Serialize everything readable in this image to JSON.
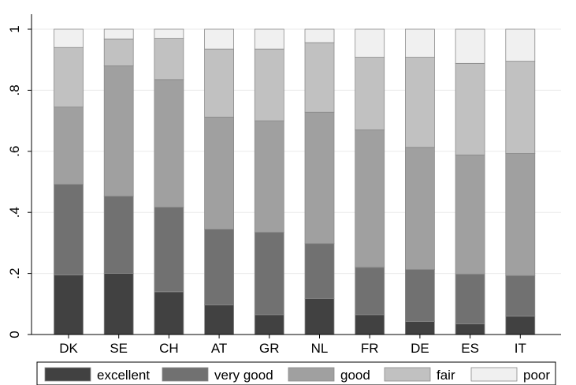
{
  "chart_data": {
    "type": "bar",
    "stacked": true,
    "categories": [
      "DK",
      "SE",
      "CH",
      "AT",
      "GR",
      "NL",
      "FR",
      "DE",
      "ES",
      "IT"
    ],
    "series": [
      {
        "name": "excellent",
        "color": "#414141",
        "values": [
          0.195,
          0.2,
          0.14,
          0.097,
          0.065,
          0.118,
          0.065,
          0.043,
          0.035,
          0.06
        ]
      },
      {
        "name": "very good",
        "color": "#717171",
        "values": [
          0.297,
          0.253,
          0.277,
          0.248,
          0.27,
          0.18,
          0.155,
          0.17,
          0.163,
          0.133
        ]
      },
      {
        "name": "good",
        "color": "#a0a0a0",
        "values": [
          0.253,
          0.427,
          0.418,
          0.367,
          0.365,
          0.43,
          0.45,
          0.4,
          0.39,
          0.4
        ]
      },
      {
        "name": "fair",
        "color": "#c1c1c1",
        "values": [
          0.195,
          0.088,
          0.135,
          0.223,
          0.235,
          0.228,
          0.238,
          0.295,
          0.3,
          0.302
        ]
      },
      {
        "name": "poor",
        "color": "#f0f0f0",
        "values": [
          0.06,
          0.032,
          0.03,
          0.065,
          0.065,
          0.044,
          0.092,
          0.092,
          0.112,
          0.105
        ]
      }
    ],
    "y_ticks": [
      {
        "value": 0,
        "label": "0"
      },
      {
        "value": 0.2,
        "label": ".2"
      },
      {
        "value": 0.4,
        "label": ".4"
      },
      {
        "value": 0.6,
        "label": ".6"
      },
      {
        "value": 0.8,
        "label": ".8"
      },
      {
        "value": 1,
        "label": "1"
      }
    ],
    "ylim": [
      0,
      1
    ],
    "grid": true,
    "title": "",
    "xlabel": "",
    "ylabel": "",
    "legend_position": "bottom"
  }
}
